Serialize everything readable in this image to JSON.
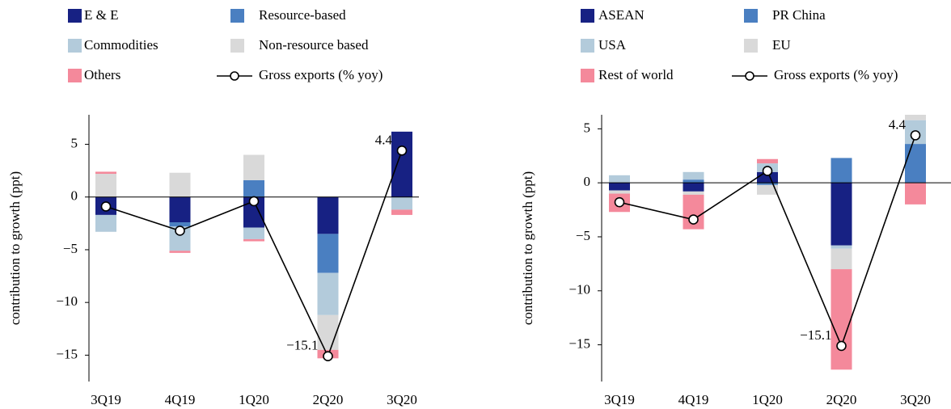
{
  "chart_data": [
    {
      "type": "bar",
      "stacked": true,
      "ylabel": "contribution to growth (ppt)",
      "categories": [
        "3Q19",
        "4Q19",
        "1Q20",
        "2Q20",
        "3Q20"
      ],
      "ylim": [
        -17.5,
        7.8
      ],
      "yticks": [
        {
          "value": -15,
          "label": "−15"
        },
        {
          "value": -10,
          "label": "−10"
        },
        {
          "value": -5,
          "label": "−5"
        },
        0,
        5
      ],
      "series": [
        {
          "name": "E & E",
          "color": "#172183",
          "values": [
            -1.7,
            -2.4,
            -2.9,
            -3.5,
            6.2
          ]
        },
        {
          "name": "Resource-based",
          "color": "#4a7fc1",
          "values": [
            0,
            -0.4,
            1.6,
            -3.7,
            0
          ]
        },
        {
          "name": "Commodities",
          "color": "#b3cbdb",
          "values": [
            -1.6,
            -2.3,
            -1.1,
            -4.0,
            -1.2
          ]
        },
        {
          "name": "Non-resource based",
          "color": "#d9d9d9",
          "values": [
            2.2,
            2.3,
            2.4,
            -3.3,
            0
          ]
        },
        {
          "name": "Others",
          "color": "#f4899b",
          "values": [
            0.2,
            -0.2,
            -0.2,
            -0.8,
            -0.5
          ]
        },
        {
          "name": "Gross exports (% yoy)",
          "type": "line",
          "color": "#000000",
          "values": [
            -0.9,
            -3.2,
            -0.4,
            -15.1,
            4.4
          ],
          "value_labels": [
            null,
            null,
            null,
            "−15.1",
            "4.4"
          ]
        }
      ]
    },
    {
      "type": "bar",
      "stacked": true,
      "ylabel": "contribution to growth (ppt)",
      "categories": [
        "3Q19",
        "4Q19",
        "1Q20",
        "2Q20",
        "3Q20"
      ],
      "ylim": [
        -18.4,
        6.3
      ],
      "yticks": [
        {
          "value": -15,
          "label": "−15"
        },
        {
          "value": -10,
          "label": "−10"
        },
        {
          "value": -5,
          "label": "−5"
        },
        0,
        5
      ],
      "series": [
        {
          "name": "ASEAN",
          "color": "#172183",
          "values": [
            -0.7,
            -0.8,
            1.0,
            -5.8,
            0
          ]
        },
        {
          "name": "PR China",
          "color": "#4a7fc1",
          "values": [
            0,
            0.3,
            -0.2,
            2.3,
            3.6
          ]
        },
        {
          "name": "USA",
          "color": "#b3cbdb",
          "values": [
            0.7,
            0.7,
            0.8,
            -0.3,
            2.2
          ]
        },
        {
          "name": "EU",
          "color": "#d9d9d9",
          "values": [
            -0.3,
            -0.3,
            -0.9,
            -1.9,
            0.5
          ]
        },
        {
          "name": "Rest of world",
          "color": "#f4899b",
          "values": [
            -1.7,
            -3.2,
            0.4,
            -9.3,
            -2.0
          ]
        },
        {
          "name": "Gross exports (% yoy)",
          "type": "line",
          "color": "#000000",
          "values": [
            -1.8,
            -3.4,
            1.1,
            -15.1,
            4.4
          ],
          "value_labels": [
            null,
            null,
            null,
            "−15.1",
            "4.4"
          ]
        }
      ]
    }
  ]
}
